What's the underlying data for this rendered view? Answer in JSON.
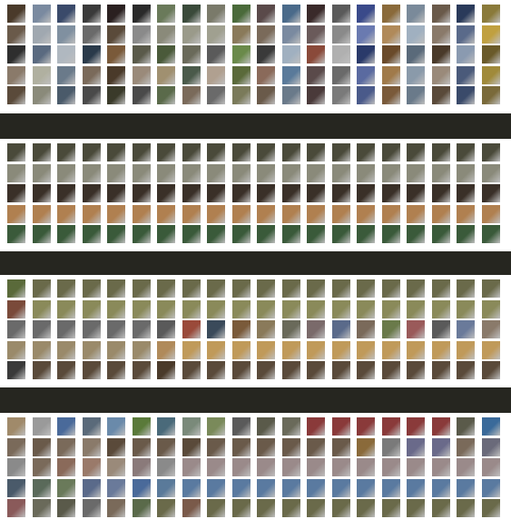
{
  "panels": [
    {
      "name": "panel-1",
      "description_free": true,
      "strips": [
        [
          "#4a3a2a",
          "#6a5a4a",
          "#2e2e2e",
          "#8a7a6a",
          "#5a4a3a"
        ],
        [
          "#7a8aa0",
          "#a0a8b0",
          "#5a6a80",
          "#b0b0a0",
          "#8a8a7a"
        ],
        [
          "#3a4a6a",
          "#8090a0",
          "#b0b8c0",
          "#6a7a8a",
          "#4a5a6a"
        ],
        [
          "#3a3a3a",
          "#6a6a6a",
          "#2a3a4a",
          "#7a6a5a",
          "#4a4a4a"
        ],
        [
          "#2a2020",
          "#5a4a3a",
          "#7a5a3a",
          "#4a3a2a",
          "#3a3a2a"
        ],
        [
          "#2a2a2a",
          "#8a8a8a",
          "#5a5a4a",
          "#9a8a7a",
          "#4a4a4a"
        ],
        [
          "#6a7a5a",
          "#8a8a7a",
          "#4a5a3a",
          "#a09070",
          "#5a6a4a"
        ],
        [
          "#3a4a3a",
          "#9a9a8a",
          "#6a6a5a",
          "#4a5a4a",
          "#7a6a5a"
        ],
        [
          "#7a7a6a",
          "#a0a090",
          "#5a5a5a",
          "#b0a090",
          "#6a6a6a"
        ],
        [
          "#4a6a3a",
          "#8a7a5a",
          "#6a8a4a",
          "#5a6a3a",
          "#7a7a5a"
        ],
        [
          "#5a4a4a",
          "#7a6a5a",
          "#3a3a3a",
          "#8a6a5a",
          "#6a5a4a"
        ],
        [
          "#4a6a8a",
          "#7a8aa0",
          "#a0b0c0",
          "#5a7a9a",
          "#6a7a8a"
        ],
        [
          "#3a2a2a",
          "#6a5a5a",
          "#8a4a3a",
          "#5a4a4a",
          "#4a3a3a"
        ],
        [
          "#5a5a5a",
          "#8a8a8a",
          "#b0b0b0",
          "#6a6a6a",
          "#7a7a7a"
        ],
        [
          "#3a4a8a",
          "#6a7ab0",
          "#2a3a6a",
          "#5a6aa0",
          "#4a5a8a"
        ],
        [
          "#8a6a3a",
          "#b08a5a",
          "#6a4a2a",
          "#a07a4a",
          "#7a5a3a"
        ],
        [
          "#7a8a9a",
          "#a0b0c0",
          "#5a6a7a",
          "#8a9aaa",
          "#6a7a8a"
        ],
        [
          "#6a5a4a",
          "#8a7a6a",
          "#4a3a2a",
          "#9a8a7a",
          "#5a4a3a"
        ],
        [
          "#2a3a5a",
          "#5a6a8a",
          "#8a9ab0",
          "#4a5a7a",
          "#3a4a6a"
        ],
        [
          "#8a7a3a",
          "#c0a040",
          "#6a5a2a",
          "#a08a3a",
          "#7a6a3a"
        ]
      ]
    },
    {
      "name": "panel-2",
      "strips": [
        [
          "#4a4a3a",
          "#8a8a7a",
          "#3a3028",
          "#b08050",
          "#3a5a3a"
        ],
        [
          "#4a4a3a",
          "#8a8a7a",
          "#3a3028",
          "#b08050",
          "#3a5a3a"
        ],
        [
          "#4a4a3a",
          "#8a8a7a",
          "#3a3028",
          "#b08050",
          "#3a5a3a"
        ],
        [
          "#4a4a3a",
          "#8a8a7a",
          "#3a3028",
          "#b08050",
          "#3a5a3a"
        ],
        [
          "#4a4a3a",
          "#8a8a7a",
          "#3a3028",
          "#b08050",
          "#3a5a3a"
        ],
        [
          "#4a4a3a",
          "#8a8a7a",
          "#3a3028",
          "#b08050",
          "#3a5a3a"
        ],
        [
          "#4a4a3a",
          "#8a8a7a",
          "#3a3028",
          "#b08050",
          "#3a5a3a"
        ],
        [
          "#4a4a3a",
          "#8a8a7a",
          "#3a3028",
          "#b08050",
          "#3a5a3a"
        ],
        [
          "#4a4a3a",
          "#8a8a7a",
          "#3a3028",
          "#b08050",
          "#3a5a3a"
        ],
        [
          "#4a4a3a",
          "#8a8a7a",
          "#3a3028",
          "#b08050",
          "#3a5a3a"
        ],
        [
          "#4a4a3a",
          "#8a8a7a",
          "#3a3028",
          "#b08050",
          "#3a5a3a"
        ],
        [
          "#4a4a3a",
          "#8a8a7a",
          "#3a3028",
          "#b08050",
          "#3a5a3a"
        ],
        [
          "#4a4a3a",
          "#8a8a7a",
          "#3a3028",
          "#b08050",
          "#3a5a3a"
        ],
        [
          "#4a4a3a",
          "#8a8a7a",
          "#3a3028",
          "#b08050",
          "#3a5a3a"
        ],
        [
          "#4a4a3a",
          "#8a8a7a",
          "#3a3028",
          "#b08050",
          "#3a5a3a"
        ],
        [
          "#4a4a3a",
          "#8a8a7a",
          "#3a3028",
          "#b08050",
          "#3a5a3a"
        ],
        [
          "#4a4a3a",
          "#8a8a7a",
          "#3a3028",
          "#b08050",
          "#3a5a3a"
        ],
        [
          "#4a4a3a",
          "#8a8a7a",
          "#3a3028",
          "#b08050",
          "#3a5a3a"
        ],
        [
          "#4a4a3a",
          "#8a8a7a",
          "#3a3028",
          "#b08050",
          "#3a5a3a"
        ],
        [
          "#4a4a3a",
          "#8a8a7a",
          "#3a3028",
          "#b08050",
          "#3a5a3a"
        ]
      ]
    },
    {
      "name": "panel-3",
      "strips": [
        [
          "#5a6a3a",
          "#7a4a3a",
          "#6a6a6a",
          "#9a8a6a",
          "#3a3a3a"
        ],
        [
          "#6a6a4a",
          "#8a8a5a",
          "#6a6a6a",
          "#9a8a6a",
          "#5a4a3a"
        ],
        [
          "#6a6a4a",
          "#8a8a5a",
          "#6a6a6a",
          "#9a8a6a",
          "#5a4a3a"
        ],
        [
          "#6a6a4a",
          "#8a8a5a",
          "#6a6a6a",
          "#9a8a6a",
          "#5a4a3a"
        ],
        [
          "#6a6a4a",
          "#8a8a5a",
          "#6a6a6a",
          "#9a8a6a",
          "#5a4a3a"
        ],
        [
          "#6a6a4a",
          "#8a8a5a",
          "#6a6a6a",
          "#9a8a6a",
          "#5a4a3a"
        ],
        [
          "#6a6a4a",
          "#8a8a5a",
          "#5a5a5a",
          "#b08a5a",
          "#4a3a2a"
        ],
        [
          "#6a6a4a",
          "#8a8a5a",
          "#9a4a3a",
          "#c09a5a",
          "#5a4a3a"
        ],
        [
          "#6a6a4a",
          "#8a8a5a",
          "#3a4a5a",
          "#c09a5a",
          "#5a4a3a"
        ],
        [
          "#6a6a4a",
          "#8a8a5a",
          "#7a5a3a",
          "#c09a5a",
          "#5a4a3a"
        ],
        [
          "#6a6a4a",
          "#8a8a5a",
          "#8a7a5a",
          "#c09a5a",
          "#5a4a3a"
        ],
        [
          "#6a6a4a",
          "#8a8a5a",
          "#6a6a5a",
          "#c09a5a",
          "#5a4a3a"
        ],
        [
          "#6a6a4a",
          "#8a8a5a",
          "#7a6a6a",
          "#c09a5a",
          "#5a4a3a"
        ],
        [
          "#6a6a4a",
          "#8a8a5a",
          "#5a6a8a",
          "#c09a5a",
          "#5a4a3a"
        ],
        [
          "#6a6a4a",
          "#8a8a5a",
          "#7a6a5a",
          "#c09a5a",
          "#5a4a3a"
        ],
        [
          "#6a6a4a",
          "#8a8a5a",
          "#6a7a4a",
          "#c09a5a",
          "#5a4a3a"
        ],
        [
          "#6a6a4a",
          "#8a8a5a",
          "#9a5a5a",
          "#c09a5a",
          "#5a4a3a"
        ],
        [
          "#6a6a4a",
          "#8a8a5a",
          "#5a5a5a",
          "#c09a5a",
          "#5a4a3a"
        ],
        [
          "#6a6a4a",
          "#8a8a5a",
          "#6a7a9a",
          "#c09a5a",
          "#5a4a3a"
        ],
        [
          "#6a6a4a",
          "#8a8a5a",
          "#8a7a6a",
          "#c09a5a",
          "#5a4a3a"
        ]
      ]
    },
    {
      "name": "panel-4",
      "strips": [
        [
          "#a08a6a",
          "#7a6a5a",
          "#8a8a8a",
          "#4a5a6a",
          "#8a5a5a"
        ],
        [
          "#9a9a9a",
          "#6a5a4a",
          "#7a6a5a",
          "#5a6a5a",
          "#6a6a5a"
        ],
        [
          "#4a6a9a",
          "#7a6a5a",
          "#8a6a5a",
          "#6a7a5a",
          "#5a5a4a"
        ],
        [
          "#5a6a7a",
          "#8a7a6a",
          "#9a7a6a",
          "#5a6a8a",
          "#6a6a6a"
        ],
        [
          "#6a8aaa",
          "#5a4a3a",
          "#9a8a7a",
          "#6a7a9a",
          "#7a6a5a"
        ],
        [
          "#5a7a3a",
          "#6a5a4a",
          "#8a7a7a",
          "#4a6a9a",
          "#5a6a4a"
        ],
        [
          "#4a6a7a",
          "#6a5a4a",
          "#8a8a8a",
          "#5a7a9a",
          "#6a6a4a"
        ],
        [
          "#7a8a7a",
          "#5a4a3a",
          "#9a8a8a",
          "#5a7aa0",
          "#7a5a4a"
        ],
        [
          "#7a8a5a",
          "#6a5a4a",
          "#9a8a8a",
          "#5a7aa0",
          "#6a6a4a"
        ],
        [
          "#5a5a5a",
          "#6a5a4a",
          "#9a8a8a",
          "#5a7aa0",
          "#6a6a4a"
        ],
        [
          "#5a5a4a",
          "#6a5a4a",
          "#9a8a8a",
          "#5a7aa0",
          "#6a6a4a"
        ],
        [
          "#6a6a5a",
          "#6a5a4a",
          "#9a8a8a",
          "#5a7aa0",
          "#6a6a4a"
        ],
        [
          "#8a3a3a",
          "#6a5a4a",
          "#9a8a8a",
          "#5a7aa0",
          "#6a6a4a"
        ],
        [
          "#8a3a3a",
          "#6a5a4a",
          "#9a8a8a",
          "#5a7aa0",
          "#6a6a4a"
        ],
        [
          "#8a3a3a",
          "#8a6a3a",
          "#9a8a8a",
          "#5a7aa0",
          "#6a6a4a"
        ],
        [
          "#8a3a3a",
          "#7a7a7a",
          "#9a8a8a",
          "#5a7aa0",
          "#6a6a4a"
        ],
        [
          "#8a3a3a",
          "#6a6a8a",
          "#9a8a8a",
          "#5a7aa0",
          "#6a6a4a"
        ],
        [
          "#8a3a3a",
          "#6a6a8a",
          "#9a8a8a",
          "#5a7aa0",
          "#6a6a4a"
        ],
        [
          "#5a5a4a",
          "#7a6a5a",
          "#9a8a8a",
          "#5a7aa0",
          "#6a6a4a"
        ],
        [
          "#3a6a9a",
          "#6a6a7a",
          "#9a8a8a",
          "#5a7aa0",
          "#6a6a4a"
        ]
      ]
    }
  ]
}
